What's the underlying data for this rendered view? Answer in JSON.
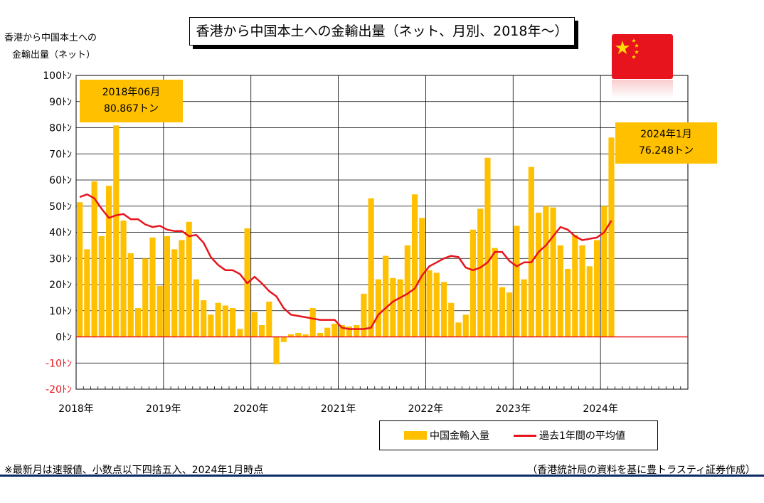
{
  "title": "香港から中国本土への金輸出量（ネット、月別、2018年～）",
  "ylabel_line1": "香港から中国本土への",
  "ylabel_line2": "金輸出量（ネット）",
  "callout_peak": {
    "date": "2018年06月",
    "value": "80.867トン"
  },
  "callout_latest": {
    "date": "2024年1月",
    "value": "76.248トン"
  },
  "legend": {
    "bar": "中国金輸入量",
    "line": "過去1年間の平均値"
  },
  "footnote": "※最新月は速報値、小数点以下四捨五入、2024年1月時点",
  "source": "（香港統計局の資料を基に豊トラスティ証券作成）",
  "colors": {
    "bar": "#ffc000",
    "avg_line": "#e8141d",
    "zero_line": "#e8141d",
    "negative_tick": "#e8141d",
    "flag": "#e8141d"
  },
  "chart_data": {
    "type": "bar",
    "x_tick_labels": [
      "2018年",
      "2019年",
      "2020年",
      "2021年",
      "2022年",
      "2023年",
      "2024年"
    ],
    "x_start": "2018-01",
    "x_range_months": 84,
    "y_tick_labels": [
      "100ﾄﾝ",
      "90ﾄﾝ",
      "80ﾄﾝ",
      "70ﾄﾝ",
      "60ﾄﾝ",
      "50ﾄﾝ",
      "40ﾄﾝ",
      "30ﾄﾝ",
      "20ﾄﾝ",
      "10ﾄﾝ",
      "0ﾄﾝ",
      "-10ﾄﾝ",
      "-20ﾄﾝ"
    ],
    "ylim": [
      -20,
      100
    ],
    "grid": true,
    "series": [
      {
        "name": "中国金輸入量",
        "type": "bar",
        "values": [
          51.5,
          33.5,
          59.5,
          38.5,
          57.8,
          80.867,
          44.5,
          32.0,
          11.0,
          30.0,
          38.0,
          19.5,
          38.5,
          33.5,
          37.0,
          44.0,
          22.0,
          14.0,
          8.5,
          13.0,
          12.0,
          11.0,
          3.0,
          41.5,
          9.5,
          4.5,
          13.5,
          -10.5,
          -2.0,
          1.0,
          1.5,
          1.0,
          11.0,
          1.5,
          3.5,
          5.0,
          4.5,
          4.0,
          4.5,
          16.5,
          53.0,
          22.0,
          31.0,
          22.5,
          22.0,
          35.0,
          54.5,
          45.5,
          25.5,
          24.5,
          21.0,
          13.0,
          5.5,
          8.5,
          41.0,
          49.0,
          68.5,
          34.0,
          19.0,
          17.0,
          42.5,
          22.0,
          65.0,
          47.5,
          50.0,
          49.5,
          35.0,
          26.0,
          39.0,
          35.0,
          27.0,
          37.0,
          50.0,
          76.248
        ]
      },
      {
        "name": "過去1年間の平均値",
        "type": "line",
        "values": [
          53.5,
          54.5,
          53.0,
          49.0,
          45.5,
          46.5,
          47.0,
          45.0,
          45.0,
          43.0,
          42.0,
          42.5,
          41.0,
          40.5,
          40.5,
          38.5,
          39.0,
          36.0,
          30.5,
          27.5,
          25.5,
          25.5,
          24.0,
          20.5,
          23.0,
          20.5,
          17.5,
          15.5,
          11.0,
          8.5,
          8.0,
          7.5,
          7.0,
          6.5,
          6.5,
          6.5,
          3.5,
          3.0,
          3.0,
          3.0,
          3.5,
          8.5,
          11.0,
          13.5,
          15.0,
          16.5,
          18.5,
          23.5,
          27.0,
          28.5,
          30.0,
          31.0,
          30.5,
          26.5,
          25.5,
          26.5,
          28.5,
          32.5,
          32.5,
          29.0,
          27.0,
          28.5,
          28.5,
          32.5,
          35.0,
          38.5,
          42.0,
          41.0,
          38.5,
          37.0,
          37.5,
          38.0,
          40.0,
          44.5
        ]
      }
    ]
  }
}
